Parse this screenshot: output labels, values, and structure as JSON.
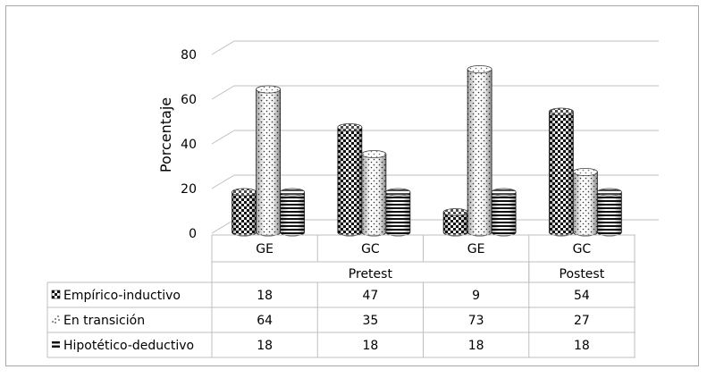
{
  "chart_data": {
    "type": "bar",
    "style": "3d-cylinder",
    "ylabel": "Porcentaje",
    "ylim": [
      0,
      80
    ],
    "yticks": [
      0,
      20,
      40,
      60,
      80
    ],
    "grid": true,
    "categories": [
      "GE",
      "GC",
      "GE",
      "GC"
    ],
    "groups": [
      {
        "label": "Pretest",
        "span": 3
      },
      {
        "label": "Postest",
        "span": 1
      }
    ],
    "series": [
      {
        "name": "Empírico-inductivo",
        "pattern": "checkerboard",
        "values": [
          18,
          47,
          9,
          54
        ]
      },
      {
        "name": "En transición",
        "pattern": "dotted",
        "values": [
          64,
          35,
          73,
          27
        ]
      },
      {
        "name": "Hipotético-deductivo",
        "pattern": "horizontal-stripes",
        "values": [
          18,
          18,
          18,
          18
        ]
      }
    ],
    "data_table": true
  }
}
